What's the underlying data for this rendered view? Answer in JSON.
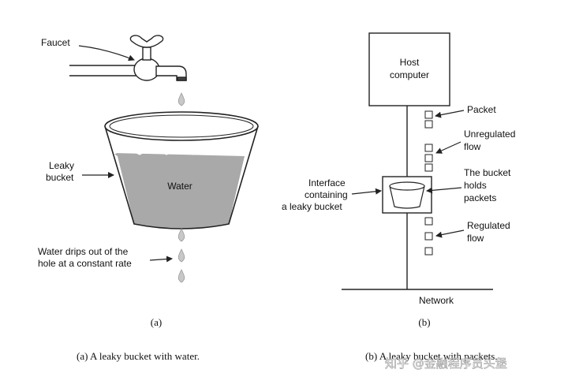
{
  "panel_a": {
    "faucet_label": "Faucet",
    "leaky_line1": "Leaky",
    "leaky_line2": "bucket",
    "water_label": "Water",
    "drips_line1": "Water drips out of the",
    "drips_line2": "hole at a constant rate",
    "panel_letter": "(a)",
    "caption": "(a) A leaky bucket with water."
  },
  "panel_b": {
    "host_line1": "Host",
    "host_line2": "computer",
    "packet_label": "Packet",
    "unreg_line1": "Unregulated",
    "unreg_line2": "flow",
    "holds_line1": "The bucket",
    "holds_line2": "holds",
    "holds_line3": "packets",
    "iface_line1": "Interface",
    "iface_line2": "containing",
    "iface_line3": "a leaky bucket",
    "reg_line1": "Regulated",
    "reg_line2": "flow",
    "network_label": "Network",
    "panel_letter": "(b)",
    "caption": "(b) A leaky bucket with packets."
  },
  "watermark": "知乎 @金融程序员头堡",
  "colors": {
    "water": "#a9a9a9",
    "line": "#222222",
    "drop": "#c8c8c8"
  }
}
